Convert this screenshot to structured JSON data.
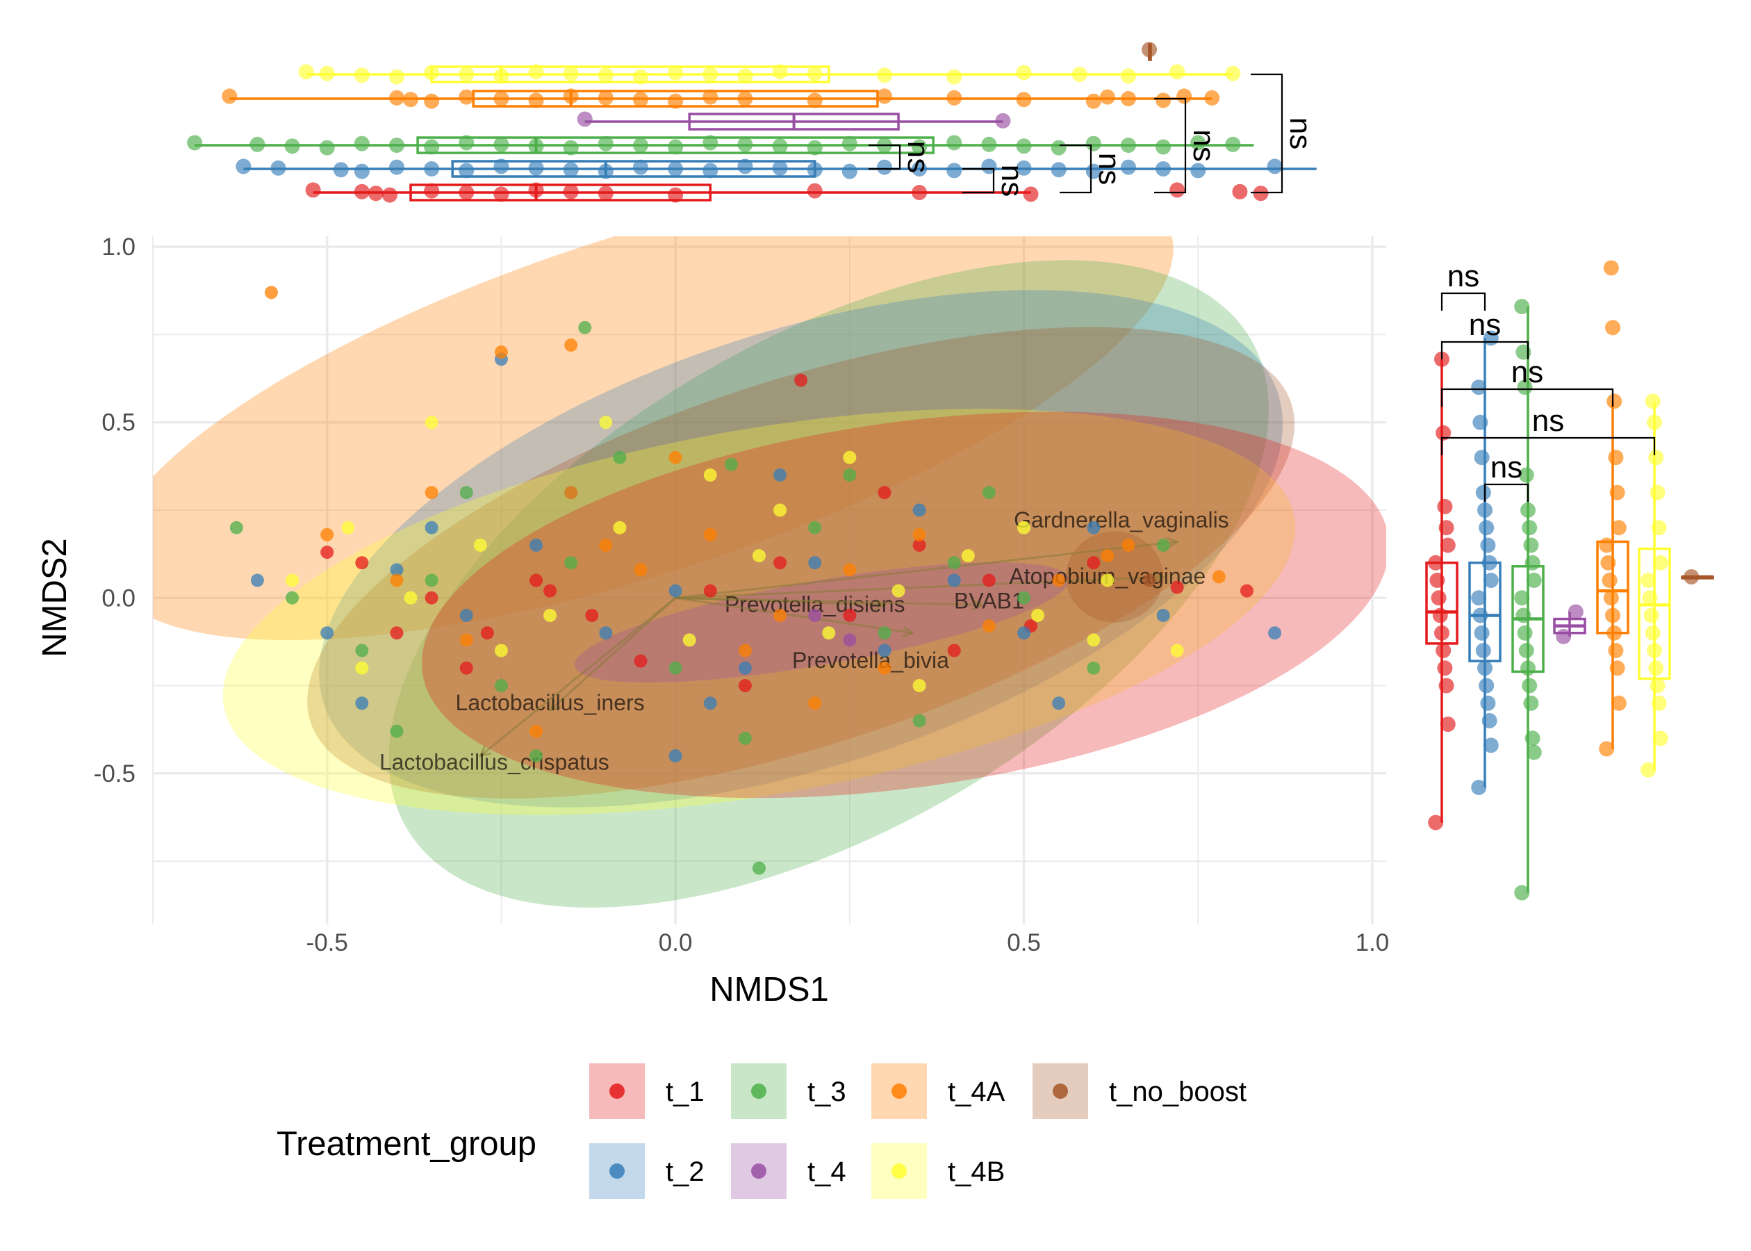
{
  "chart_data": {
    "type": "scatter",
    "title": "",
    "xlabel": "NMDS1",
    "ylabel": "NMDS2",
    "xlim": [
      -0.75,
      1.02
    ],
    "ylim": [
      -0.93,
      1.03
    ],
    "xticks": [
      "-0.5",
      "0.0",
      "0.5",
      "1.0"
    ],
    "yticks": [
      "-0.5",
      "0.0",
      "0.5",
      "1.0"
    ],
    "grid": true,
    "legend": {
      "title": "Treatment_group",
      "placement": "bottom",
      "items": [
        {
          "name": "t_1",
          "color": "#E41A1C"
        },
        {
          "name": "t_2",
          "color": "#377EB8"
        },
        {
          "name": "t_3",
          "color": "#4DAF4A"
        },
        {
          "name": "t_4",
          "color": "#984EA3"
        },
        {
          "name": "t_4A",
          "color": "#FF7F00"
        },
        {
          "name": "t_4B",
          "color": "#FFFF33"
        },
        {
          "name": "t_no_boost",
          "color": "#A65628"
        }
      ]
    },
    "ellipses": [
      {
        "group": "t_4A",
        "center": [
          -0.05,
          0.55
        ],
        "radii": [
          0.8,
          0.48
        ],
        "angle": -18
      },
      {
        "group": "t_3",
        "center": [
          0.22,
          0.04
        ],
        "radii": [
          0.7,
          0.7
        ],
        "angle": -30
      },
      {
        "group": "t_2",
        "center": [
          0.18,
          0.14
        ],
        "radii": [
          0.72,
          0.62
        ],
        "angle": -18
      },
      {
        "group": "t_no_boost",
        "center": [
          0.18,
          0.1
        ],
        "radii": [
          0.74,
          0.52
        ],
        "angle": -18
      },
      {
        "group": "t_4B",
        "center": [
          0.12,
          -0.04
        ],
        "radii": [
          0.78,
          0.52
        ],
        "angle": -10
      },
      {
        "group": "t_1",
        "center": [
          0.33,
          -0.02
        ],
        "radii": [
          0.7,
          0.52
        ],
        "angle": -8
      },
      {
        "group": "t_4",
        "center": [
          0.21,
          -0.07
        ],
        "radii": [
          0.36,
          0.12
        ],
        "angle": -10
      },
      {
        "group": "t_no_boost",
        "center": [
          0.63,
          0.06
        ],
        "radii": [
          0.07,
          0.13
        ],
        "angle": 0
      }
    ],
    "vectors": [
      {
        "label": "Gardnerella_vaginalis",
        "x": 0.72,
        "y": 0.16,
        "label_x": 0.64,
        "label_y": 0.22
      },
      {
        "label": "Atopobium_vaginae",
        "x": 0.7,
        "y": 0.06,
        "label_x": 0.62,
        "label_y": 0.06
      },
      {
        "label": "Prevotella_disiens",
        "x": 0.3,
        "y": -0.02,
        "label_x": 0.2,
        "label_y": -0.02
      },
      {
        "label": "BVAB1",
        "x": 0.44,
        "y": -0.02,
        "label_x": 0.45,
        "label_y": -0.01
      },
      {
        "label": "Prevotella_bivia",
        "x": 0.34,
        "y": -0.1,
        "label_x": 0.28,
        "label_y": -0.18
      },
      {
        "label": "Lactobacillus_iners",
        "x": -0.18,
        "y": -0.32,
        "label_x": -0.18,
        "label_y": -0.3
      },
      {
        "label": "Lactobacillus_crispatus",
        "x": -0.28,
        "y": -0.45,
        "label_x": -0.26,
        "label_y": -0.47
      }
    ],
    "series": [
      {
        "name": "t_1",
        "points": [
          [
            -0.5,
            0.13
          ],
          [
            -0.45,
            0.1
          ],
          [
            -0.35,
            0.0
          ],
          [
            -0.27,
            -0.1
          ],
          [
            -0.2,
            0.05
          ],
          [
            -0.12,
            -0.05
          ],
          [
            -0.05,
            -0.18
          ],
          [
            0.05,
            0.02
          ],
          [
            0.15,
            0.1
          ],
          [
            0.25,
            -0.05
          ],
          [
            0.35,
            0.15
          ],
          [
            0.45,
            0.05
          ],
          [
            0.51,
            -0.08
          ],
          [
            0.72,
            0.03
          ],
          [
            0.82,
            0.02
          ],
          [
            0.18,
            0.62
          ],
          [
            -0.18,
            0.02
          ],
          [
            0.4,
            -0.15
          ],
          [
            0.1,
            -0.25
          ],
          [
            -0.3,
            -0.2
          ],
          [
            0.6,
            0.1
          ],
          [
            0.3,
            0.3
          ],
          [
            -0.4,
            -0.1
          ]
        ]
      },
      {
        "name": "t_2",
        "points": [
          [
            -0.6,
            0.05
          ],
          [
            -0.5,
            -0.1
          ],
          [
            -0.4,
            0.08
          ],
          [
            -0.3,
            -0.05
          ],
          [
            -0.2,
            0.15
          ],
          [
            -0.1,
            -0.1
          ],
          [
            0.0,
            0.02
          ],
          [
            0.1,
            -0.2
          ],
          [
            0.2,
            0.1
          ],
          [
            0.3,
            -0.15
          ],
          [
            0.4,
            0.05
          ],
          [
            0.5,
            -0.1
          ],
          [
            0.6,
            0.2
          ],
          [
            0.7,
            -0.05
          ],
          [
            0.86,
            -0.1
          ],
          [
            -0.25,
            0.68
          ],
          [
            0.05,
            -0.3
          ],
          [
            -0.15,
            0.3
          ],
          [
            0.35,
            0.25
          ],
          [
            -0.45,
            -0.3
          ],
          [
            0.15,
            0.35
          ],
          [
            0.55,
            -0.3
          ],
          [
            0.0,
            -0.45
          ],
          [
            -0.35,
            0.2
          ]
        ]
      },
      {
        "name": "t_3",
        "points": [
          [
            -0.63,
            0.2
          ],
          [
            -0.55,
            0.0
          ],
          [
            -0.45,
            -0.15
          ],
          [
            -0.35,
            0.05
          ],
          [
            -0.25,
            -0.25
          ],
          [
            -0.15,
            0.1
          ],
          [
            -0.08,
            0.4
          ],
          [
            0.0,
            -0.2
          ],
          [
            0.08,
            0.38
          ],
          [
            0.12,
            -0.77
          ],
          [
            0.2,
            0.2
          ],
          [
            0.3,
            -0.1
          ],
          [
            0.4,
            0.1
          ],
          [
            0.5,
            0.0
          ],
          [
            0.6,
            -0.2
          ],
          [
            0.7,
            0.15
          ],
          [
            -0.13,
            0.77
          ],
          [
            -0.4,
            -0.38
          ],
          [
            0.1,
            -0.4
          ],
          [
            0.35,
            -0.35
          ],
          [
            -0.2,
            -0.45
          ],
          [
            0.45,
            0.3
          ],
          [
            -0.3,
            0.3
          ],
          [
            0.25,
            0.35
          ]
        ]
      },
      {
        "name": "t_4",
        "points": [
          [
            0.2,
            -0.05
          ],
          [
            0.25,
            -0.12
          ]
        ]
      },
      {
        "name": "t_4A",
        "points": [
          [
            -0.58,
            0.87
          ],
          [
            -0.25,
            0.7
          ],
          [
            -0.15,
            0.72
          ],
          [
            -0.5,
            0.18
          ],
          [
            -0.4,
            0.05
          ],
          [
            -0.3,
            -0.12
          ],
          [
            -0.15,
            0.3
          ],
          [
            -0.05,
            0.08
          ],
          [
            0.05,
            0.18
          ],
          [
            0.15,
            -0.05
          ],
          [
            0.25,
            0.08
          ],
          [
            0.35,
            0.18
          ],
          [
            0.45,
            -0.08
          ],
          [
            0.55,
            0.05
          ],
          [
            0.62,
            0.12
          ],
          [
            0.78,
            0.06
          ],
          [
            -0.2,
            -0.38
          ],
          [
            0.0,
            0.4
          ],
          [
            -0.1,
            0.15
          ],
          [
            0.1,
            -0.15
          ],
          [
            0.3,
            -0.2
          ],
          [
            0.65,
            0.15
          ],
          [
            -0.35,
            0.3
          ],
          [
            0.2,
            -0.3
          ]
        ]
      },
      {
        "name": "t_4B",
        "points": [
          [
            -0.47,
            0.2
          ],
          [
            -0.38,
            0.0
          ],
          [
            -0.28,
            0.15
          ],
          [
            -0.18,
            -0.05
          ],
          [
            -0.08,
            0.2
          ],
          [
            0.02,
            -0.12
          ],
          [
            0.12,
            0.12
          ],
          [
            0.22,
            -0.1
          ],
          [
            0.32,
            0.02
          ],
          [
            0.42,
            0.12
          ],
          [
            0.52,
            -0.05
          ],
          [
            0.62,
            0.05
          ],
          [
            0.72,
            -0.15
          ],
          [
            -0.35,
            0.5
          ],
          [
            -0.1,
            0.5
          ],
          [
            0.05,
            0.35
          ],
          [
            -0.25,
            -0.15
          ],
          [
            0.15,
            0.25
          ],
          [
            0.35,
            -0.25
          ],
          [
            -0.45,
            -0.2
          ],
          [
            0.25,
            0.4
          ],
          [
            0.5,
            0.2
          ],
          [
            -0.55,
            0.05
          ],
          [
            0.6,
            -0.12
          ]
        ]
      },
      {
        "name": "t_no_boost",
        "points": [
          [
            0.68,
            0.05
          ]
        ]
      }
    ],
    "top_margin": {
      "axis": "NMDS1",
      "boxes": [
        {
          "group": "t_1",
          "whisker_low": -0.52,
          "q1": -0.38,
          "median": -0.2,
          "q3": 0.05,
          "whisker_high": 0.51,
          "points": [
            -0.52,
            -0.45,
            -0.43,
            -0.41,
            -0.35,
            -0.3,
            -0.25,
            -0.2,
            -0.15,
            -0.1,
            0.0,
            0.2,
            0.35,
            0.51,
            0.72,
            0.81,
            0.84
          ]
        },
        {
          "group": "t_2",
          "whisker_low": -0.62,
          "q1": -0.32,
          "median": -0.1,
          "q3": 0.2,
          "whisker_high": 0.92,
          "points": [
            -0.62,
            -0.57,
            -0.48,
            -0.45,
            -0.4,
            -0.35,
            -0.3,
            -0.25,
            -0.2,
            -0.15,
            -0.1,
            -0.05,
            0.0,
            0.05,
            0.1,
            0.15,
            0.2,
            0.25,
            0.3,
            0.35,
            0.4,
            0.45,
            0.5,
            0.55,
            0.6,
            0.65,
            0.7,
            0.75,
            0.86
          ]
        },
        {
          "group": "t_3",
          "whisker_low": -0.69,
          "q1": -0.37,
          "median": -0.2,
          "q3": 0.37,
          "whisker_high": 0.83,
          "points": [
            -0.69,
            -0.6,
            -0.55,
            -0.5,
            -0.45,
            -0.4,
            -0.35,
            -0.3,
            -0.25,
            -0.2,
            -0.15,
            -0.1,
            -0.05,
            0.0,
            0.05,
            0.1,
            0.15,
            0.2,
            0.25,
            0.3,
            0.35,
            0.4,
            0.45,
            0.5,
            0.55,
            0.6,
            0.65,
            0.7,
            0.75,
            0.8
          ]
        },
        {
          "group": "t_4",
          "whisker_low": -0.13,
          "q1": 0.02,
          "median": 0.17,
          "q3": 0.32,
          "whisker_high": 0.47,
          "points": [
            -0.13,
            0.47
          ]
        },
        {
          "group": "t_4A",
          "whisker_low": -0.64,
          "q1": -0.29,
          "median": -0.15,
          "q3": 0.29,
          "whisker_high": 0.77,
          "points": [
            -0.64,
            -0.4,
            -0.38,
            -0.35,
            -0.3,
            -0.25,
            -0.2,
            -0.15,
            -0.1,
            -0.05,
            0.0,
            0.05,
            0.1,
            0.2,
            0.3,
            0.4,
            0.5,
            0.6,
            0.62,
            0.65,
            0.7,
            0.73,
            0.77
          ]
        },
        {
          "group": "t_4B",
          "whisker_low": -0.53,
          "q1": -0.35,
          "median": -0.25,
          "q3": 0.22,
          "whisker_high": 0.8,
          "points": [
            -0.53,
            -0.5,
            -0.45,
            -0.4,
            -0.35,
            -0.3,
            -0.25,
            -0.2,
            -0.15,
            -0.1,
            -0.05,
            0.0,
            0.05,
            0.1,
            0.15,
            0.2,
            0.3,
            0.4,
            0.5,
            0.58,
            0.65,
            0.72,
            0.8
          ]
        },
        {
          "group": "t_no_boost",
          "whisker_low": 0.68,
          "q1": 0.68,
          "median": 0.68,
          "q3": 0.68,
          "whisker_high": 0.68,
          "points": [
            0.68
          ]
        }
      ],
      "comparisons": [
        {
          "groups": [
            "t_1",
            "t_2"
          ],
          "label": "ns"
        },
        {
          "groups": [
            "t_1",
            "t_3"
          ],
          "label": "ns"
        },
        {
          "groups": [
            "t_1",
            "t_4A"
          ],
          "label": "ns"
        },
        {
          "groups": [
            "t_1",
            "t_4B"
          ],
          "label": "ns"
        },
        {
          "groups": [
            "t_2",
            "t_3"
          ],
          "label": "ns"
        }
      ]
    },
    "right_margin": {
      "axis": "NMDS2",
      "boxes": [
        {
          "group": "t_1",
          "whisker_low": -0.64,
          "q1": -0.13,
          "median": -0.04,
          "q3": 0.1,
          "whisker_high": 0.68,
          "points": [
            -0.64,
            -0.36,
            -0.25,
            -0.2,
            -0.15,
            -0.1,
            -0.05,
            0.0,
            0.05,
            0.1,
            0.15,
            0.2,
            0.26,
            0.47,
            0.68
          ]
        },
        {
          "group": "t_2",
          "whisker_low": -0.54,
          "q1": -0.18,
          "median": -0.05,
          "q3": 0.1,
          "whisker_high": 0.74,
          "points": [
            -0.54,
            -0.42,
            -0.35,
            -0.3,
            -0.25,
            -0.2,
            -0.15,
            -0.1,
            -0.05,
            0.0,
            0.05,
            0.1,
            0.15,
            0.2,
            0.25,
            0.3,
            0.4,
            0.5,
            0.6,
            0.74
          ]
        },
        {
          "group": "t_3",
          "whisker_low": -0.84,
          "q1": -0.21,
          "median": -0.06,
          "q3": 0.09,
          "whisker_high": 0.83,
          "points": [
            -0.84,
            -0.44,
            -0.4,
            -0.3,
            -0.25,
            -0.2,
            -0.15,
            -0.1,
            -0.05,
            0.0,
            0.05,
            0.1,
            0.15,
            0.2,
            0.25,
            0.35,
            0.6,
            0.7,
            0.83
          ]
        },
        {
          "group": "t_4",
          "whisker_low": -0.11,
          "q1": -0.1,
          "median": -0.08,
          "q3": -0.06,
          "whisker_high": -0.04,
          "points": [
            -0.11,
            -0.04
          ]
        },
        {
          "group": "t_4A",
          "whisker_low": -0.43,
          "q1": -0.1,
          "median": 0.02,
          "q3": 0.16,
          "whisker_high": 0.56,
          "points": [
            -0.43,
            -0.3,
            -0.2,
            -0.15,
            -0.1,
            -0.05,
            0.0,
            0.05,
            0.1,
            0.15,
            0.2,
            0.3,
            0.4,
            0.56,
            0.77,
            0.94
          ]
        },
        {
          "group": "t_4B",
          "whisker_low": -0.49,
          "q1": -0.23,
          "median": -0.02,
          "q3": 0.14,
          "whisker_high": 0.56,
          "points": [
            -0.49,
            -0.4,
            -0.3,
            -0.25,
            -0.2,
            -0.15,
            -0.1,
            -0.05,
            0.0,
            0.05,
            0.1,
            0.2,
            0.3,
            0.4,
            0.5,
            0.56
          ]
        },
        {
          "group": "t_no_boost",
          "whisker_low": 0.06,
          "q1": 0.06,
          "median": 0.06,
          "q3": 0.06,
          "whisker_high": 0.06,
          "points": [
            0.06
          ]
        }
      ],
      "comparisons": [
        {
          "groups": [
            "t_1",
            "t_2"
          ],
          "label": "ns"
        },
        {
          "groups": [
            "t_1",
            "t_3"
          ],
          "label": "ns"
        },
        {
          "groups": [
            "t_1",
            "t_4A"
          ],
          "label": "ns"
        },
        {
          "groups": [
            "t_1",
            "t_4B"
          ],
          "label": "ns"
        },
        {
          "groups": [
            "t_2",
            "t_3"
          ],
          "label": "ns"
        }
      ]
    }
  }
}
